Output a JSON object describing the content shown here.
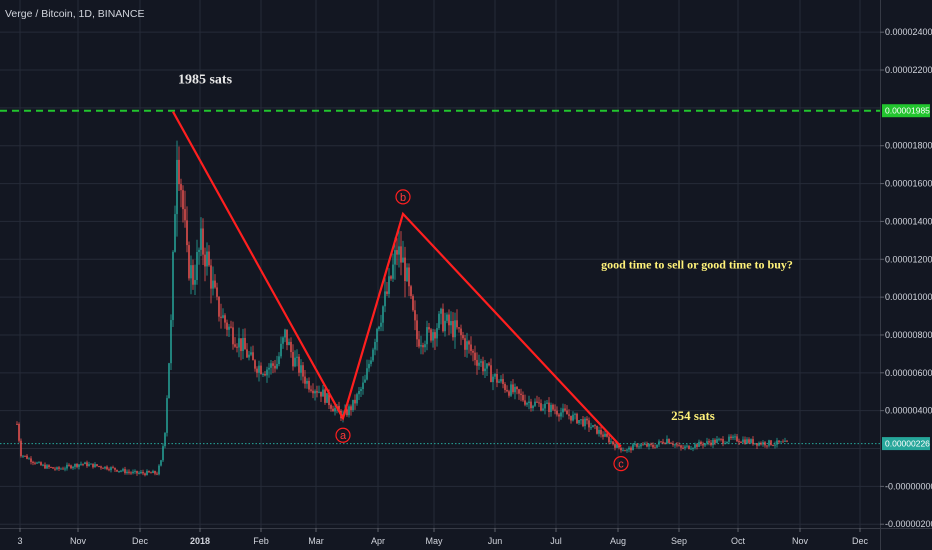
{
  "header": {
    "title": "Verge / Bitcoin, 1D, BINANCE"
  },
  "colors": {
    "background": "#131722",
    "grid": "#262b38",
    "up": "#26a69a",
    "down": "#ef5350",
    "resistance": "#22c52e",
    "current": "#26a69a",
    "wave": "#ff1f1f",
    "annotation_white": "#e8e8e8",
    "annotation_yellow": "#fff27a"
  },
  "chart_data": {
    "type": "candlestick",
    "title": "Verge / Bitcoin, 1D, BINANCE",
    "x_ticks": [
      "3",
      "Nov",
      "Dec",
      "2018",
      "Feb",
      "Mar",
      "Apr",
      "May",
      "Jun",
      "Jul",
      "Aug",
      "Sep",
      "Oct",
      "Nov",
      "Dec"
    ],
    "y_ticks": [
      "0.00002400",
      "0.00002200",
      "0.00001800",
      "0.00001600",
      "0.00001400",
      "0.00001200",
      "0.00001000",
      "0.00000800",
      "0.00000600",
      "0.00000400",
      "-0.00000000",
      "-0.00000200"
    ],
    "y_tick_values": [
      2.4e-05,
      2.2e-05,
      1.8e-05,
      1.6e-05,
      1.4e-05,
      1.2e-05,
      1e-05,
      8e-06,
      6e-06,
      4e-06,
      0,
      -2e-06
    ],
    "ylim": [
      -2.2e-06,
      2.57e-05
    ],
    "grid": true,
    "price_lines": [
      {
        "label": "0.00001985",
        "value": 1.985e-05,
        "style": "dashed",
        "color": "#22c52e"
      },
      {
        "label": "0.00000226",
        "value": 2.26e-06,
        "style": "dotted",
        "color": "#26a69a"
      }
    ],
    "wave_points": [
      {
        "label": "",
        "day": 78,
        "value": 1.98e-05
      },
      {
        "label": "a",
        "day": 163,
        "value": 3.6e-06
      },
      {
        "label": "b",
        "day": 193,
        "value": 1.44e-05
      },
      {
        "label": "c",
        "day": 302,
        "value": 2.1e-06
      }
    ],
    "annotations": [
      {
        "text": "1985 sats",
        "day": 94,
        "value": 2.13e-05,
        "color": "#e8e8e8",
        "size": 14
      },
      {
        "text": "good time to sell or good time to buy?",
        "day": 340,
        "value": 1.15e-05,
        "color": "#fff27a",
        "size": 12
      },
      {
        "text": "254 sats",
        "day": 338,
        "value": 3.5e-06,
        "color": "#fff27a",
        "size": 13
      }
    ],
    "price_anchors": [
      {
        "day": 0,
        "value": 3.3e-06
      },
      {
        "day": 2,
        "value": 1.7e-06
      },
      {
        "day": 12,
        "value": 1.1e-06
      },
      {
        "day": 20,
        "value": 9e-07
      },
      {
        "day": 32,
        "value": 1.2e-06
      },
      {
        "day": 45,
        "value": 1e-06
      },
      {
        "day": 58,
        "value": 7e-07
      },
      {
        "day": 70,
        "value": 7e-07
      },
      {
        "day": 72,
        "value": 1.3e-06
      },
      {
        "day": 74,
        "value": 3e-06
      },
      {
        "day": 77,
        "value": 8.5e-06
      },
      {
        "day": 80,
        "value": 1.82e-05
      },
      {
        "day": 82,
        "value": 1.6e-05
      },
      {
        "day": 85,
        "value": 1.2e-05
      },
      {
        "day": 88,
        "value": 1.1e-05
      },
      {
        "day": 92,
        "value": 1.28e-05
      },
      {
        "day": 95,
        "value": 1.2e-05
      },
      {
        "day": 100,
        "value": 9.5e-06
      },
      {
        "day": 105,
        "value": 8.5e-06
      },
      {
        "day": 112,
        "value": 7.5e-06
      },
      {
        "day": 118,
        "value": 6.5e-06
      },
      {
        "day": 124,
        "value": 6.2e-06
      },
      {
        "day": 130,
        "value": 6.5e-06
      },
      {
        "day": 134,
        "value": 8e-06
      },
      {
        "day": 138,
        "value": 6.8e-06
      },
      {
        "day": 145,
        "value": 5.5e-06
      },
      {
        "day": 152,
        "value": 5e-06
      },
      {
        "day": 158,
        "value": 4.2e-06
      },
      {
        "day": 163,
        "value": 3.7e-06
      },
      {
        "day": 168,
        "value": 4.3e-06
      },
      {
        "day": 174,
        "value": 5.5e-06
      },
      {
        "day": 180,
        "value": 8.5e-06
      },
      {
        "day": 186,
        "value": 1.05e-05
      },
      {
        "day": 190,
        "value": 1.25e-05
      },
      {
        "day": 194,
        "value": 1.15e-05
      },
      {
        "day": 197,
        "value": 9.5e-06
      },
      {
        "day": 200,
        "value": 7.8e-06
      },
      {
        "day": 206,
        "value": 8e-06
      },
      {
        "day": 212,
        "value": 8.8e-06
      },
      {
        "day": 220,
        "value": 8.2e-06
      },
      {
        "day": 228,
        "value": 7e-06
      },
      {
        "day": 236,
        "value": 6e-06
      },
      {
        "day": 245,
        "value": 5.2e-06
      },
      {
        "day": 255,
        "value": 4.5e-06
      },
      {
        "day": 265,
        "value": 4.2e-06
      },
      {
        "day": 275,
        "value": 3.8e-06
      },
      {
        "day": 285,
        "value": 3.3e-06
      },
      {
        "day": 292,
        "value": 2.8e-06
      },
      {
        "day": 300,
        "value": 2.1e-06
      },
      {
        "day": 305,
        "value": 1.9e-06
      },
      {
        "day": 310,
        "value": 2.2e-06
      },
      {
        "day": 318,
        "value": 2.1e-06
      },
      {
        "day": 325,
        "value": 2.5e-06
      },
      {
        "day": 332,
        "value": 2e-06
      },
      {
        "day": 340,
        "value": 2.2e-06
      },
      {
        "day": 350,
        "value": 2.4e-06
      },
      {
        "day": 360,
        "value": 2.5e-06
      },
      {
        "day": 370,
        "value": 2.3e-06
      },
      {
        "day": 385,
        "value": 2.26e-06
      }
    ]
  }
}
